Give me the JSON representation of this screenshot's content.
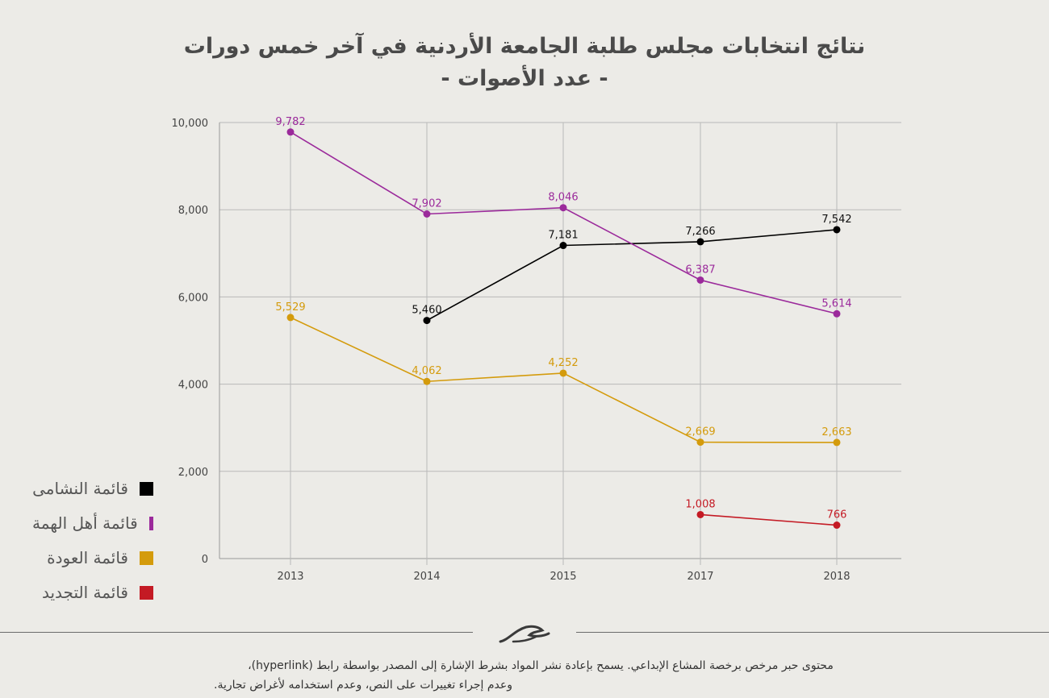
{
  "title_line1": "نتائج انتخابات مجلس طلبة الجامعة الأردنية في آخر خمس دورات",
  "title_line2": "- عدد الأصوات -",
  "legend": [
    {
      "label": "قائمة النشامى",
      "color": "#000000"
    },
    {
      "label": "قائمة أهل الهمة",
      "color": "#9b2a9b"
    },
    {
      "label": "قائمة العودة",
      "color": "#d49b0c"
    },
    {
      "label": "قائمة التجديد",
      "color": "#c41a24"
    }
  ],
  "footer": {
    "line1": "محتوى حبر مرخص برخصة المشاع الإبداعي. يسمح بإعادة نشر المواد بشرط الإشارة إلى المصدر بواسطة رابط (hyperlink)،",
    "line2": "وعدم إجراء تغييرات على النص، وعدم استخدامه لأغراض تجارية."
  },
  "chart_data": {
    "type": "line",
    "categories": [
      "2013",
      "2014",
      "2015",
      "2017",
      "2018"
    ],
    "ylim": [
      0,
      10000
    ],
    "yticks": [
      0,
      2000,
      4000,
      6000,
      8000,
      10000
    ],
    "ytick_labels": [
      "0",
      "2,000",
      "4,000",
      "6,000",
      "8,000",
      "10,000"
    ],
    "grid": true,
    "legend_position": "left",
    "series": [
      {
        "name": "قائمة النشامى",
        "color": "#000000",
        "values": [
          null,
          5460,
          7181,
          7266,
          7542
        ],
        "labels": [
          null,
          "5,460",
          "7,181",
          "7,266",
          "7,542"
        ]
      },
      {
        "name": "قائمة أهل الهمة",
        "color": "#9b2a9b",
        "values": [
          9782,
          7902,
          8046,
          6387,
          5614
        ],
        "labels": [
          "9,782",
          "7,902",
          "8,046",
          "6,387",
          "5,614"
        ]
      },
      {
        "name": "قائمة العودة",
        "color": "#d49b0c",
        "values": [
          5529,
          4062,
          4252,
          2669,
          2663
        ],
        "labels": [
          "5,529",
          "4,062",
          "4,252",
          "2,669",
          "2,663"
        ]
      },
      {
        "name": "قائمة التجديد",
        "color": "#c41a24",
        "values": [
          null,
          null,
          null,
          1008,
          766
        ],
        "labels": [
          null,
          null,
          null,
          "1,008",
          "766"
        ]
      }
    ]
  }
}
